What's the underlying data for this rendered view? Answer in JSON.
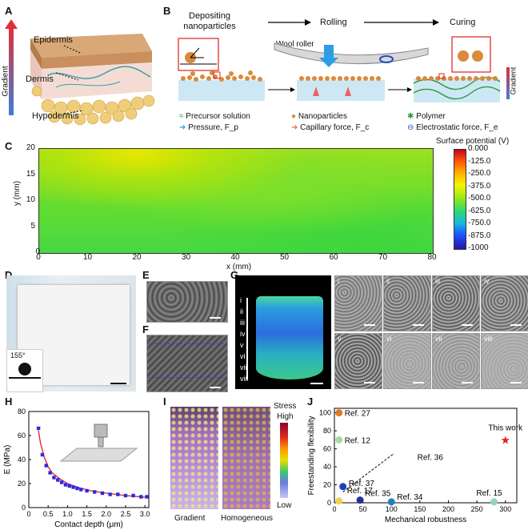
{
  "panel_labels": {
    "a": "A",
    "b": "B",
    "c": "C",
    "d": "D",
    "e": "E",
    "f": "F",
    "g": "G",
    "h": "H",
    "i": "I",
    "j": "J"
  },
  "panel_a": {
    "layers": [
      "Epidermis",
      "Dermis",
      "Hypodermis"
    ],
    "gradient_label": "Gradient"
  },
  "panel_b": {
    "steps": [
      "Depositing nanoparticles",
      "Rolling",
      "Curing"
    ],
    "roller_label": "Wool roller",
    "gradient_label": "Gradient",
    "legend": [
      {
        "icon": "precursor-icon",
        "label": "Precursor solution"
      },
      {
        "icon": "nanoparticle-icon",
        "label": "Nanoparticles"
      },
      {
        "icon": "polymer-icon",
        "label": "Polymer"
      },
      {
        "icon": "pressure-arrow-icon",
        "label": "Pressure, F_p"
      },
      {
        "icon": "capillary-arrow-icon",
        "label": "Capillary force, F_c"
      },
      {
        "icon": "electrostatic-icon",
        "label": "Electrostatic force, F_e"
      }
    ]
  },
  "panel_c": {
    "xlabel": "x (mm)",
    "ylabel": "y (mm)",
    "xticks": [
      "0",
      "10",
      "20",
      "30",
      "40",
      "50",
      "60",
      "70",
      "80"
    ],
    "yticks": [
      "0",
      "5",
      "10",
      "15",
      "20"
    ],
    "colorbar_title": "Surface potential (V)",
    "colorbar_ticks": [
      "0.000",
      "-125.0",
      "-250.0",
      "-375.0",
      "-500.0",
      "-625.0",
      "-750.0",
      "-875.0",
      "-1000"
    ]
  },
  "panel_d": {
    "contact_angle": "155°"
  },
  "panel_g": {
    "layers": [
      "i",
      "ii",
      "iii",
      "iv",
      "v",
      "vi",
      "vii",
      "viii"
    ]
  },
  "panel_i": {
    "labels": [
      "Gradient",
      "Homogeneous"
    ],
    "stress_title": "Stress",
    "stress_high": "High",
    "stress_low": "Low"
  },
  "chart_data": [
    {
      "id": "H",
      "type": "scatter",
      "xlabel": "Contact depth (μm)",
      "ylabel": "E (MPa)",
      "xlim": [
        0,
        3.1
      ],
      "ylim": [
        0,
        80
      ],
      "xticks": [
        "0",
        "0.5",
        "1.0",
        "1.5",
        "2.0",
        "2.5",
        "3.0"
      ],
      "yticks": [
        "0",
        "20",
        "40",
        "60",
        "80"
      ],
      "series": [
        {
          "name": "measured",
          "x": [
            0.25,
            0.35,
            0.45,
            0.55,
            0.65,
            0.75,
            0.85,
            0.95,
            1.05,
            1.15,
            1.25,
            1.35,
            1.5,
            1.7,
            1.9,
            2.1,
            2.3,
            2.5,
            2.7,
            2.9,
            3.05
          ],
          "y": [
            66,
            44,
            35,
            29,
            25,
            23,
            21,
            19,
            18,
            17,
            16,
            15,
            14,
            13,
            12,
            11,
            11,
            10,
            10,
            9,
            9
          ]
        },
        {
          "name": "fit",
          "x": [
            0.25,
            0.3,
            0.4,
            0.5,
            0.6,
            0.8,
            1.0,
            1.3,
            1.6,
            2.0,
            2.5,
            3.05
          ],
          "y": [
            64,
            54,
            42,
            34,
            29,
            24,
            20,
            16.5,
            14,
            12,
            10,
            8.5
          ]
        }
      ]
    },
    {
      "id": "J",
      "type": "scatter",
      "xlabel": "Mechanical robustness",
      "ylabel": "Freestanding flexibility",
      "xlim": [
        0,
        320
      ],
      "ylim": [
        0,
        105
      ],
      "xticks": [
        "0",
        "50",
        "100",
        "150",
        "200",
        "250",
        "300"
      ],
      "yticks": [
        "0",
        "20",
        "40",
        "60",
        "80",
        "100"
      ],
      "points": [
        {
          "label": "Ref. 27",
          "x": 8,
          "y": 100,
          "color": "#e07b1f"
        },
        {
          "label": "Ref. 12",
          "x": 8,
          "y": 70,
          "color": "#a6dba0"
        },
        {
          "label": "Ref. 37",
          "x": 15,
          "y": 18,
          "color": "#1f3fbf"
        },
        {
          "label": "Ref. 17",
          "x": 8,
          "y": 2,
          "color": "#f2d24a"
        },
        {
          "label": "Ref. 35",
          "x": 45,
          "y": 3,
          "color": "#2b2b9f"
        },
        {
          "label": "Ref. 36",
          "x": 22,
          "y": 5,
          "color": "#8c8c8c"
        },
        {
          "label": "Ref. 34",
          "x": 100,
          "y": 1,
          "color": "#1f7fbf"
        },
        {
          "label": "Ref. 15",
          "x": 280,
          "y": 1,
          "color": "#8fd6b8"
        },
        {
          "label": "This work",
          "x": 300,
          "y": 70,
          "color": "#e01f1f"
        }
      ]
    }
  ]
}
